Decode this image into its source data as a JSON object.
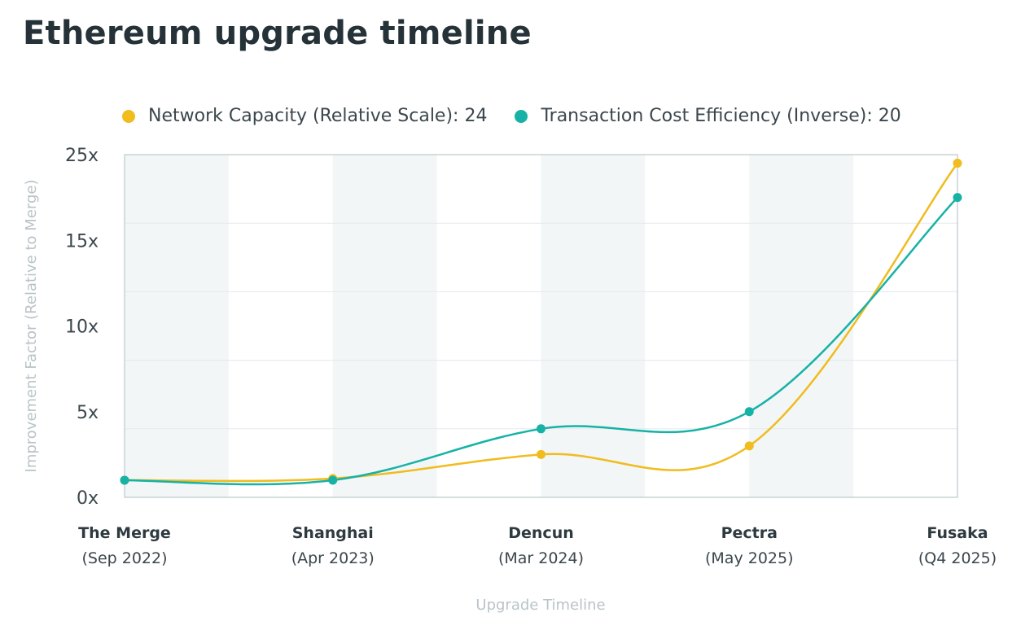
{
  "title": "Ethereum upgrade timeline",
  "colors": {
    "series1": "#f0bc1e",
    "series2": "#17b2a6",
    "band": "#f2f6f7",
    "grid": "#e3eaec",
    "axis": "#c9d3d6"
  },
  "chart_data": {
    "type": "line",
    "title": "Ethereum upgrade timeline",
    "xlabel": "Upgrade Timeline",
    "ylabel": "Improvement Factor (Relative to Merge)",
    "categories": [
      {
        "name": "The Merge",
        "date": "(Sep 2022)"
      },
      {
        "name": "Shanghai",
        "date": "(Apr 2023)"
      },
      {
        "name": "Dencun",
        "date": "(Mar 2024)"
      },
      {
        "name": "Pectra",
        "date": "(May 2025)"
      },
      {
        "name": "Fusaka",
        "date": "(Q4 2025)"
      }
    ],
    "yticks": [
      {
        "value": 0,
        "label": "0x"
      },
      {
        "value": 5,
        "label": "5x"
      },
      {
        "value": 10,
        "label": "10x"
      },
      {
        "value": 15,
        "label": "15x"
      },
      {
        "value": 25,
        "label": "25x"
      }
    ],
    "series": [
      {
        "name": "Network Capacity (Relative Scale)",
        "legend": "Network Capacity (Relative Scale): 24",
        "values": [
          1,
          1.1,
          2.5,
          3,
          24
        ]
      },
      {
        "name": "Transaction Cost Efficiency (Inverse)",
        "legend": "Transaction Cost Efficiency (Inverse): 20",
        "values": [
          1,
          1,
          4,
          5,
          20
        ]
      }
    ],
    "grid": true,
    "legend_position": "top"
  }
}
